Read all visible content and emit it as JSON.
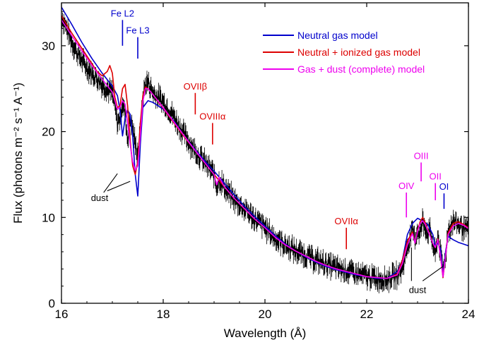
{
  "chart_data": {
    "type": "line",
    "title": "",
    "xlabel": "Wavelength (Å)",
    "ylabel": "Flux (photons m⁻² s⁻¹ A⁻¹)",
    "xlim": [
      16,
      24
    ],
    "ylim": [
      0,
      35
    ],
    "xticks": [
      16,
      18,
      20,
      22,
      24
    ],
    "yticks": [
      0,
      10,
      20,
      30
    ],
    "grid": false,
    "legend_position": "top-right",
    "series": [
      {
        "name": "data",
        "color": "#000000",
        "style": "noisy-points",
        "x": [
          16.0,
          16.1,
          16.2,
          16.3,
          16.4,
          16.5,
          16.6,
          16.7,
          16.8,
          16.9,
          17.0,
          17.05,
          17.1,
          17.15,
          17.2,
          17.25,
          17.3,
          17.35,
          17.4,
          17.45,
          17.5,
          17.55,
          17.6,
          17.65,
          17.7,
          17.8,
          17.9,
          18.0,
          18.2,
          18.4,
          18.6,
          18.8,
          19.0,
          19.05,
          19.1,
          19.2,
          19.4,
          19.6,
          19.8,
          20.0,
          20.2,
          20.4,
          20.6,
          20.8,
          21.0,
          21.2,
          21.4,
          21.6,
          21.8,
          22.0,
          22.2,
          22.4,
          22.6,
          22.7,
          22.8,
          22.85,
          22.9,
          22.95,
          23.0,
          23.05,
          23.1,
          23.15,
          23.2,
          23.25,
          23.3,
          23.35,
          23.4,
          23.45,
          23.5,
          23.55,
          23.6,
          23.7,
          23.8,
          23.9,
          24.0
        ],
        "y": [
          33.5,
          32.0,
          30.5,
          29.3,
          28.3,
          27.5,
          26.8,
          26.2,
          25.5,
          25.0,
          24.5,
          23.0,
          21.0,
          21.5,
          23.5,
          22.0,
          19.0,
          21.5,
          20.5,
          18.5,
          17.5,
          20.0,
          23.8,
          25.5,
          25.8,
          24.5,
          24.0,
          23.5,
          21.8,
          19.8,
          18.0,
          16.5,
          15.0,
          13.5,
          14.5,
          13.5,
          12.0,
          11.0,
          9.8,
          8.8,
          7.6,
          6.8,
          6.1,
          5.6,
          5.0,
          4.6,
          4.1,
          3.8,
          3.4,
          3.1,
          2.9,
          2.8,
          3.3,
          4.0,
          6.8,
          7.5,
          8.4,
          7.5,
          8.6,
          8.0,
          9.6,
          9.0,
          8.2,
          8.4,
          6.8,
          5.6,
          8.0,
          6.0,
          3.8,
          5.5,
          8.5,
          9.5,
          9.2,
          8.8,
          8.3
        ]
      },
      {
        "name": "Neutral gas model",
        "color": "#0000cc",
        "x": [
          16.0,
          16.2,
          16.4,
          16.6,
          16.8,
          17.0,
          17.1,
          17.15,
          17.2,
          17.25,
          17.3,
          17.35,
          17.4,
          17.45,
          17.5,
          17.55,
          17.6,
          17.7,
          17.8,
          18.0,
          18.2,
          18.4,
          18.6,
          18.8,
          19.0,
          19.2,
          19.4,
          19.6,
          19.8,
          20.0,
          20.2,
          20.4,
          20.6,
          20.8,
          21.0,
          21.2,
          21.4,
          21.6,
          21.8,
          22.0,
          22.2,
          22.4,
          22.6,
          22.7,
          22.8,
          22.9,
          23.0,
          23.1,
          23.2,
          23.3,
          23.35,
          23.4,
          23.45,
          23.5,
          23.55,
          23.6,
          23.7,
          23.8,
          23.9,
          24.0
        ],
        "y": [
          34.5,
          32.5,
          30.4,
          28.5,
          26.8,
          25.3,
          24.2,
          22.5,
          19.5,
          21.5,
          22.5,
          22.0,
          19.5,
          15.0,
          12.5,
          18.5,
          22.8,
          23.6,
          23.4,
          22.6,
          21.3,
          19.6,
          18.1,
          16.7,
          15.4,
          14.0,
          12.6,
          11.3,
          10.1,
          9.0,
          7.9,
          6.9,
          6.1,
          5.4,
          4.8,
          4.3,
          3.9,
          3.6,
          3.3,
          3.1,
          2.9,
          2.9,
          3.7,
          5.0,
          8.0,
          9.3,
          9.9,
          9.6,
          9.2,
          8.0,
          6.6,
          7.0,
          6.4,
          3.2,
          6.0,
          7.8,
          7.4,
          7.1,
          6.9,
          6.7
        ]
      },
      {
        "name": "Neutral + ionized gas model",
        "color": "#dd0000",
        "x": [
          16.0,
          16.2,
          16.4,
          16.6,
          16.7,
          16.8,
          16.9,
          16.95,
          17.0,
          17.05,
          17.1,
          17.15,
          17.2,
          17.25,
          17.3,
          17.35,
          17.4,
          17.45,
          17.5,
          17.55,
          17.6,
          17.65,
          17.7,
          17.8,
          18.0,
          18.2,
          18.4,
          18.6,
          18.8,
          19.0,
          19.2,
          19.4,
          19.6,
          19.8,
          20.0,
          20.2,
          20.4,
          20.6,
          20.8,
          21.0,
          21.2,
          21.4,
          21.6,
          21.8,
          22.0,
          22.2,
          22.4,
          22.6,
          22.7,
          22.8,
          22.85,
          22.9,
          22.95,
          23.0,
          23.05,
          23.1,
          23.15,
          23.2,
          23.3,
          23.35,
          23.4,
          23.45,
          23.5,
          23.55,
          23.6,
          23.7,
          23.8,
          23.9,
          24.0
        ],
        "y": [
          33.5,
          31.5,
          29.7,
          27.9,
          27.0,
          26.5,
          27.0,
          27.7,
          26.8,
          24.0,
          22.8,
          23.0,
          25.0,
          25.5,
          23.0,
          19.0,
          16.0,
          15.0,
          16.5,
          21.0,
          24.2,
          25.2,
          25.0,
          24.3,
          22.7,
          21.1,
          19.5,
          18.0,
          16.5,
          15.0,
          13.6,
          12.2,
          11.0,
          9.8,
          8.8,
          7.7,
          6.8,
          6.1,
          5.5,
          4.9,
          4.4,
          4.0,
          3.7,
          3.4,
          3.1,
          3.0,
          2.9,
          3.4,
          5.0,
          7.2,
          7.8,
          8.3,
          7.0,
          8.5,
          9.5,
          10.0,
          9.4,
          8.6,
          7.0,
          6.5,
          7.5,
          5.5,
          3.0,
          5.5,
          8.2,
          9.3,
          9.5,
          9.2,
          8.8
        ]
      },
      {
        "name": "Gas + dust (complete) model",
        "color": "#ee00ee",
        "x": [
          16.0,
          16.2,
          16.4,
          16.6,
          16.8,
          17.0,
          17.05,
          17.1,
          17.15,
          17.2,
          17.25,
          17.3,
          17.35,
          17.4,
          17.45,
          17.5,
          17.55,
          17.6,
          17.65,
          17.7,
          17.8,
          18.0,
          18.2,
          18.4,
          18.6,
          18.8,
          19.0,
          19.05,
          19.1,
          19.2,
          19.4,
          19.6,
          19.8,
          20.0,
          20.2,
          20.4,
          20.6,
          20.8,
          21.0,
          21.2,
          21.4,
          21.6,
          21.8,
          22.0,
          22.2,
          22.4,
          22.6,
          22.7,
          22.8,
          22.85,
          22.9,
          22.95,
          23.0,
          23.05,
          23.1,
          23.15,
          23.2,
          23.3,
          23.35,
          23.4,
          23.45,
          23.5,
          23.55,
          23.6,
          23.7,
          23.8,
          23.9,
          24.0
        ],
        "y": [
          33.0,
          31.2,
          29.4,
          27.7,
          26.1,
          24.6,
          23.6,
          22.6,
          22.8,
          23.6,
          23.2,
          21.0,
          18.5,
          16.5,
          15.5,
          16.0,
          19.5,
          23.5,
          25.0,
          25.0,
          24.3,
          22.8,
          21.2,
          19.6,
          18.0,
          16.5,
          15.0,
          13.8,
          14.7,
          13.6,
          12.2,
          11.0,
          9.8,
          8.8,
          7.7,
          6.8,
          6.1,
          5.5,
          4.9,
          4.4,
          4.0,
          3.7,
          3.4,
          3.1,
          3.0,
          2.9,
          3.3,
          4.6,
          6.8,
          7.5,
          8.1,
          7.0,
          8.4,
          9.3,
          9.6,
          9.2,
          8.5,
          7.0,
          6.5,
          7.4,
          5.5,
          3.1,
          5.5,
          8.0,
          9.0,
          9.3,
          9.1,
          8.7
        ]
      }
    ],
    "annotations": [
      {
        "text": "Fe L2",
        "color": "#0000cc",
        "x": 17.2,
        "y_top": 33.0,
        "y_bottom": 30.0
      },
      {
        "text": "Fe L3",
        "color": "#0000cc",
        "x": 17.5,
        "y_top": 31.0,
        "y_bottom": 28.5
      },
      {
        "text": "OVIIβ",
        "color": "#dd0000",
        "x": 18.63,
        "y_top": 24.5,
        "y_bottom": 22.0
      },
      {
        "text": "OVIIIα",
        "color": "#dd0000",
        "x": 18.97,
        "y_top": 21.0,
        "y_bottom": 18.5
      },
      {
        "text": "OVIIα",
        "color": "#dd0000",
        "x": 21.6,
        "y_top": 8.8,
        "y_bottom": 6.3
      },
      {
        "text": "OIV",
        "color": "#ee00ee",
        "x": 22.78,
        "y_top": 12.9,
        "y_bottom": 10.0
      },
      {
        "text": "OIII",
        "color": "#ee00ee",
        "x": 23.07,
        "y_top": 16.4,
        "y_bottom": 14.2
      },
      {
        "text": "OII",
        "color": "#ee00ee",
        "x": 23.35,
        "y_top": 14.0,
        "y_bottom": 12.0
      },
      {
        "text": "OI",
        "color": "#0000cc",
        "x": 23.52,
        "y_top": 12.8,
        "y_bottom": 11.0
      }
    ],
    "dust_labels": [
      {
        "text": "dust",
        "x": 16.75,
        "y": 11.9
      },
      {
        "text": "dust",
        "x": 23.0,
        "y": 1.2
      }
    ]
  }
}
